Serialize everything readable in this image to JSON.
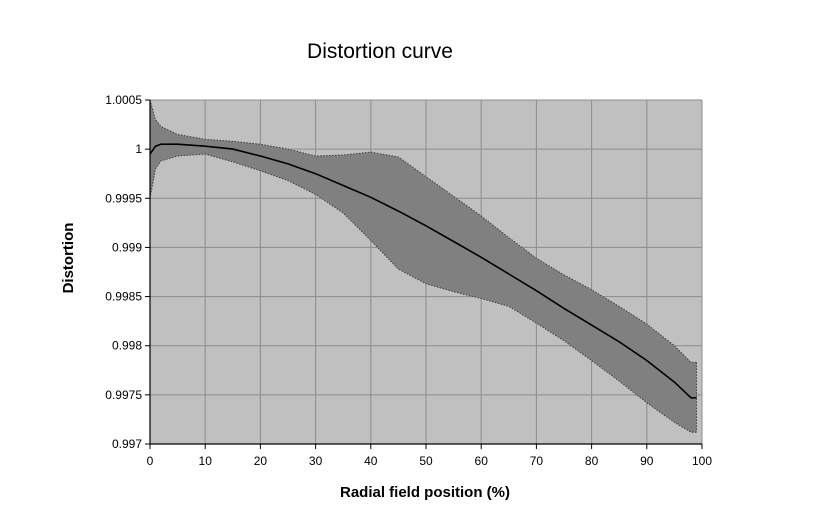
{
  "chart_data": {
    "type": "area",
    "title": "Distortion curve",
    "xlabel": "Radial field position (%)",
    "ylabel": "Distortion",
    "xlim": [
      0,
      100
    ],
    "ylim": [
      0.997,
      1.0005
    ],
    "x_ticks": [
      0,
      10,
      20,
      30,
      40,
      50,
      60,
      70,
      80,
      90,
      100
    ],
    "y_ticks": [
      0.997,
      0.9975,
      0.998,
      0.9985,
      0.999,
      0.9995,
      1,
      1.0005
    ],
    "x_tick_labels": [
      "0",
      "10",
      "20",
      "30",
      "40",
      "50",
      "60",
      "70",
      "80",
      "90",
      "100"
    ],
    "y_tick_labels": [
      "0.997",
      "0.9975",
      "0.998",
      "0.9985",
      "0.999",
      "0.9995",
      "1",
      "1.0005"
    ],
    "grid": true,
    "legend": "none",
    "colors": {
      "plot_background": "#c0c0c0",
      "band_fill": "#808080",
      "gridline": "#8c8c8c",
      "mean_line": "#000000",
      "band_edge": "#404040"
    },
    "x": [
      0,
      1,
      2,
      5,
      10,
      15,
      20,
      25,
      30,
      35,
      40,
      45,
      50,
      55,
      60,
      65,
      70,
      75,
      80,
      85,
      90,
      95,
      98,
      99
    ],
    "series": [
      {
        "role": "mean",
        "values": [
          0.99995,
          1.00003,
          1.00005,
          1.00005,
          1.00003,
          1.0,
          0.99993,
          0.99985,
          0.99975,
          0.99963,
          0.99951,
          0.99937,
          0.99922,
          0.99906,
          0.9989,
          0.99873,
          0.99856,
          0.99838,
          0.99821,
          0.99804,
          0.99785,
          0.99763,
          0.99747,
          0.99747
        ]
      },
      {
        "role": "upper",
        "values": [
          1.0005,
          1.0003,
          1.00023,
          1.00015,
          1.0001,
          1.00008,
          1.00005,
          1.0,
          0.99993,
          0.99994,
          0.99997,
          0.99992,
          0.99972,
          0.99952,
          0.99932,
          0.9991,
          0.99889,
          0.99872,
          0.99857,
          0.9984,
          0.99822,
          0.998,
          0.99783,
          0.99783
        ]
      },
      {
        "role": "lower",
        "values": [
          0.9995,
          0.9998,
          0.99988,
          0.99993,
          0.99995,
          0.99987,
          0.99978,
          0.99968,
          0.99954,
          0.99935,
          0.99907,
          0.99878,
          0.99863,
          0.99855,
          0.99848,
          0.9984,
          0.99823,
          0.99805,
          0.99785,
          0.99764,
          0.99742,
          0.99722,
          0.99712,
          0.99712
        ]
      }
    ]
  }
}
